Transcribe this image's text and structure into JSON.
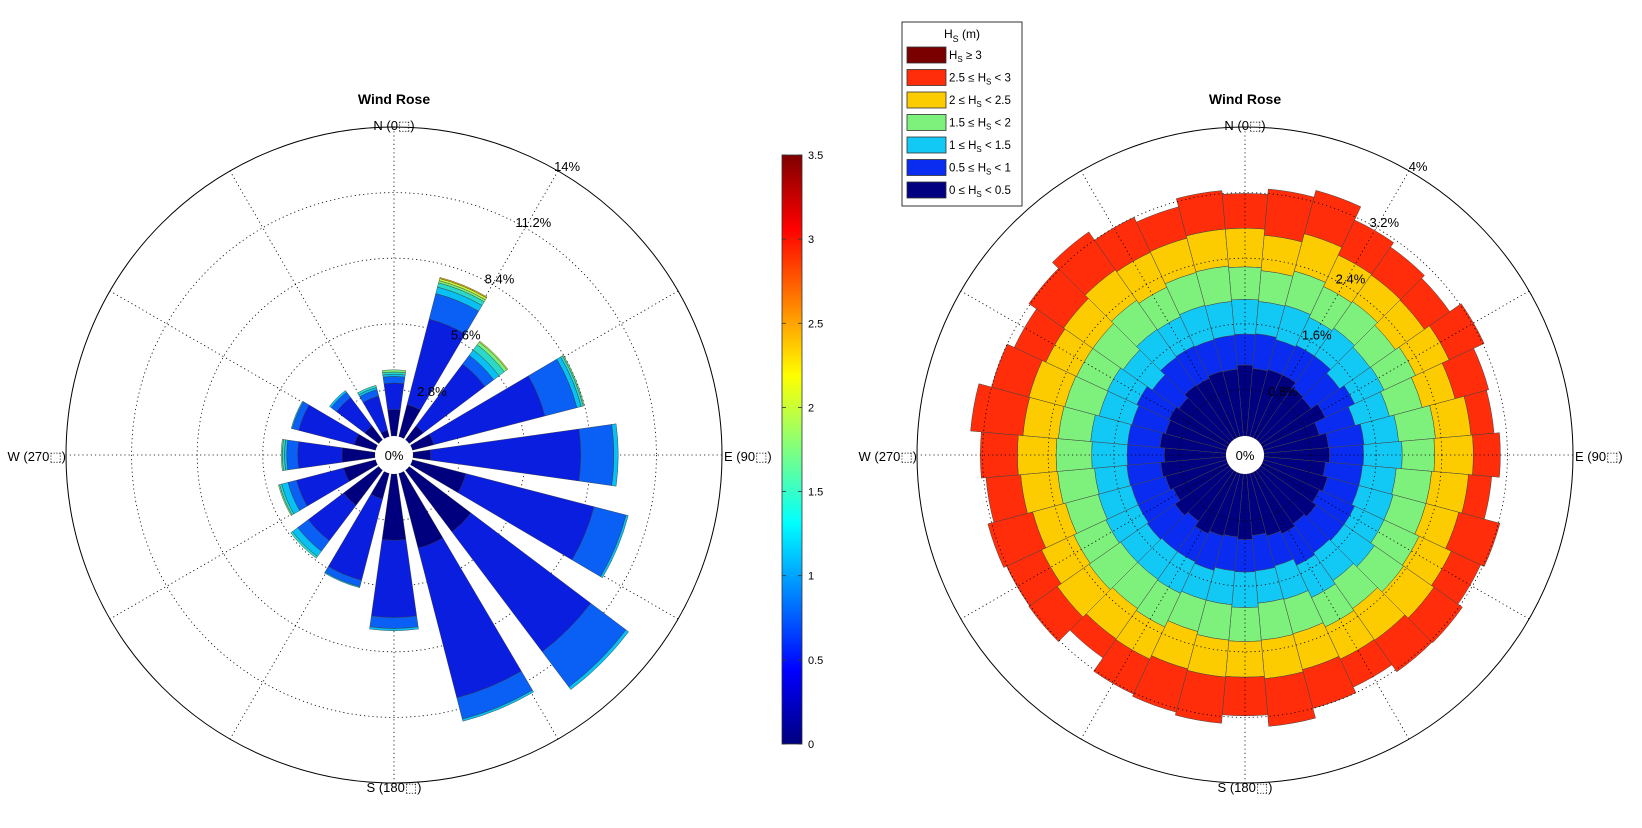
{
  "figure": {
    "colors": {
      "jet_low": "#000080",
      "jet_high": "#800000",
      "legend_borders": "#333333"
    }
  },
  "chart_data": [
    {
      "type": "polar-bar",
      "title": "Wind Rose",
      "direction_labels": {
        "n": "N (0⬚)",
        "e": "E (90⬚)",
        "s": "S (180⬚)",
        "w": "W (270⬚)"
      },
      "center_label": "0%",
      "r_ticks": [
        "2.8%",
        "5.6%",
        "8.4%",
        "11.2%",
        "14%"
      ],
      "r_tick_values": [
        2.8,
        5.6,
        8.4,
        11.2,
        14
      ],
      "r_max": 14,
      "directions_deg": [
        0,
        22.5,
        45,
        67.5,
        90,
        112.5,
        135,
        157.5,
        180,
        202.5,
        225,
        247.5,
        270,
        292.5,
        315,
        337.5
      ],
      "sector_width_deg": 16,
      "stack_colors": [
        "#00007e",
        "#0a1ee0",
        "#0a5ff5",
        "#09c0f5",
        "#2bd9c8",
        "#7ef07a",
        "#c8f53c",
        "#f5c000"
      ],
      "stacks": [
        [
          1.2,
          1.2,
          0.3,
          0.1,
          0.1,
          0.1,
          0.0,
          0.0
        ],
        [
          1.5,
          4.0,
          1.2,
          0.3,
          0.2,
          0.1,
          0.1,
          0.05
        ],
        [
          0.8,
          3.5,
          0.5,
          0.3,
          0.3,
          0.15,
          0.05
        ],
        [
          1.0,
          5.2,
          1.5,
          0.2,
          0.1,
          0.05
        ],
        [
          0.8,
          6.8,
          1.5,
          0.2
        ],
        [
          2.5,
          6.0,
          1.5,
          0.1
        ],
        [
          3.5,
          6.8,
          2.0,
          0.15
        ],
        [
          3.5,
          7.0,
          1.0,
          0.1
        ],
        [
          3.0,
          3.5,
          0.5,
          0.1
        ],
        [
          1.2,
          3.8,
          0.3,
          0.05
        ],
        [
          2.0,
          2.0,
          0.6,
          0.3,
          0.1
        ],
        [
          1.5,
          2.2,
          0.4,
          0.3,
          0.1,
          0.05
        ],
        [
          1.5,
          2.0,
          0.5,
          0.1,
          0.1,
          0.05
        ],
        [
          1.0,
          2.6,
          0.3,
          0.05
        ],
        [
          0.8,
          1.6,
          0.3,
          0.1
        ],
        [
          0.3,
          1.6,
          0.3,
          0.1,
          0.1
        ]
      ],
      "colorbar": {
        "ticks": [
          "0",
          "0.5",
          "1",
          "1.5",
          "2",
          "2.5",
          "3",
          "3.5"
        ],
        "min": 0,
        "max": 3.5
      }
    },
    {
      "type": "polar-bar",
      "title": "Wind Rose",
      "direction_labels": {
        "n": "N (0⬚)",
        "e": "E (90⬚)",
        "s": "S (180⬚)",
        "w": "W (270⬚)"
      },
      "center_label": "0%",
      "r_ticks": [
        "0.8%",
        "1.6%",
        "2.4%",
        "3.2%",
        "4%"
      ],
      "r_tick_values": [
        0.8,
        1.6,
        2.4,
        3.2,
        4
      ],
      "r_max": 4,
      "num_sectors": 36,
      "sector_width_deg": 10,
      "series": [
        {
          "name": "0 ≤ H_S < 0.5",
          "color": "#000080",
          "values": [
            0.92,
            0.88,
            0.9,
            0.9,
            0.82,
            0.8,
            0.9,
            0.75,
            0.84,
            0.85,
            0.8,
            0.86,
            0.82,
            0.88,
            0.84,
            0.88,
            0.84,
            0.8,
            0.85,
            0.82,
            0.84,
            0.88,
            0.8,
            0.86,
            0.78,
            0.82,
            0.85,
            0.8,
            0.86,
            0.82,
            0.84,
            0.8,
            0.86,
            0.85,
            0.88,
            0.87
          ]
        },
        {
          "name": "0.5 ≤ H_S < 1",
          "color": "#0a2bf0",
          "values": [
            0.4,
            0.45,
            0.4,
            0.42,
            0.5,
            0.45,
            0.42,
            0.48,
            0.46,
            0.44,
            0.48,
            0.42,
            0.5,
            0.44,
            0.46,
            0.45,
            0.4,
            0.46,
            0.42,
            0.44,
            0.46,
            0.4,
            0.48,
            0.44,
            0.5,
            0.46,
            0.44,
            0.48,
            0.42,
            0.45,
            0.46,
            0.42,
            0.44,
            0.46,
            0.42,
            0.44
          ]
        },
        {
          "name": "1 ≤ H_S < 1.5",
          "color": "#12c8f5",
          "values": [
            0.45,
            0.42,
            0.46,
            0.4,
            0.44,
            0.48,
            0.42,
            0.46,
            0.45,
            0.5,
            0.44,
            0.46,
            0.42,
            0.48,
            0.44,
            0.46,
            0.45,
            0.42,
            0.46,
            0.44,
            0.4,
            0.45,
            0.44,
            0.42,
            0.46,
            0.44,
            0.42,
            0.46,
            0.48,
            0.44,
            0.42,
            0.46,
            0.44,
            0.42,
            0.46,
            0.44
          ]
        },
        {
          "name": "1.5 ≤ H_S < 2",
          "color": "#7ef07c",
          "values": [
            0.42,
            0.4,
            0.46,
            0.44,
            0.42,
            0.4,
            0.45,
            0.44,
            0.48,
            0.42,
            0.46,
            0.44,
            0.5,
            0.46,
            0.44,
            0.42,
            0.46,
            0.48,
            0.44,
            0.46,
            0.42,
            0.48,
            0.46,
            0.5,
            0.46,
            0.44,
            0.48,
            0.46,
            0.42,
            0.46,
            0.44,
            0.48,
            0.46,
            0.42,
            0.44,
            0.46
          ]
        },
        {
          "name": "2 ≤ H_S < 2.5",
          "color": "#fccc00",
          "values": [
            0.5,
            0.46,
            0.5,
            0.45,
            0.42,
            0.46,
            0.48,
            0.44,
            0.46,
            0.5,
            0.48,
            0.44,
            0.46,
            0.48,
            0.5,
            0.46,
            0.48,
            0.5,
            0.46,
            0.48,
            0.5,
            0.46,
            0.48,
            0.5,
            0.46,
            0.44,
            0.48,
            0.5,
            0.46,
            0.48,
            0.44,
            0.46,
            0.48,
            0.5,
            0.46,
            0.48
          ]
        },
        {
          "name": "2.5 ≤ H_S < 3",
          "color": "#ff2d0a",
          "values": [
            0.45,
            0.6,
            0.58,
            0.5,
            0.44,
            0.4,
            0.5,
            0.45,
            0.3,
            0.35,
            0.3,
            0.55,
            0.42,
            0.45,
            0.5,
            0.4,
            0.52,
            0.62,
            0.5,
            0.6,
            0.58,
            0.5,
            0.3,
            0.45,
            0.5,
            0.6,
            0.45,
            0.48,
            0.68,
            0.5,
            0.45,
            0.55,
            0.6,
            0.5,
            0.42,
            0.5
          ]
        },
        {
          "name": "H_S ≥ 3",
          "color": "#800000",
          "values": []
        }
      ],
      "legend": {
        "title": "H_S (m)",
        "entries": [
          {
            "rel1": "",
            "op1": "",
            "rel2": "≥",
            "op2": "3",
            "color": "#7a0000"
          },
          {
            "rel1": "2.5",
            "op1": "≤",
            "rel2": "<",
            "op2": "3",
            "color": "#ff2d0a"
          },
          {
            "rel1": "2",
            "op1": "≤",
            "rel2": "<",
            "op2": "2.5",
            "color": "#fccc00"
          },
          {
            "rel1": "1.5",
            "op1": "≤",
            "rel2": "<",
            "op2": "2",
            "color": "#7ef07c"
          },
          {
            "rel1": "1",
            "op1": "≤",
            "rel2": "<",
            "op2": "1.5",
            "color": "#12c8f5"
          },
          {
            "rel1": "0.5",
            "op1": "≤",
            "rel2": "<",
            "op2": "1",
            "color": "#0a2bf0"
          },
          {
            "rel1": "0",
            "op1": "≤",
            "rel2": "<",
            "op2": "0.5",
            "color": "#000080"
          }
        ]
      }
    }
  ]
}
